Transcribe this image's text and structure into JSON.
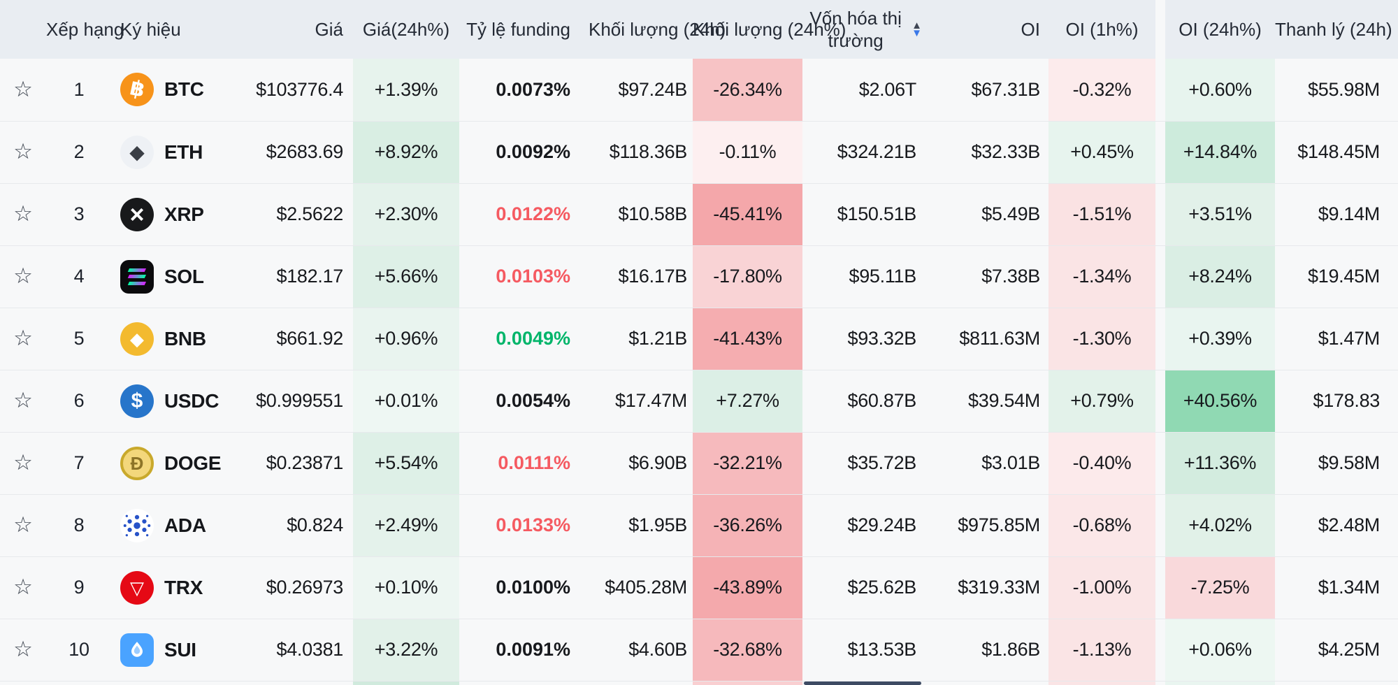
{
  "palette": {
    "header_bg": "#e9edf2",
    "row_bg": "#f7f8f9",
    "row_border": "#e7e9ec",
    "text_dark": "#17191d",
    "funding_red": "#f55a61",
    "funding_green": "#00b56a",
    "sort_arrow_inactive": "#3e4554",
    "sort_arrow_active": "#3a78e8",
    "scrollbar_thumb": "#3d4a63"
  },
  "sort": {
    "column": "mcap",
    "direction": "desc"
  },
  "icons": {
    "star_glyph": "☆",
    "sort_up_glyph": "▲",
    "sort_down_glyph": "▼"
  },
  "columns": {
    "star": "",
    "rank": "Xếp hạng",
    "symbol": "Ký hiệu",
    "price": "Giá",
    "price_chg": "Giá(24h%)",
    "funding": "Tỷ lệ funding",
    "volume": "Khối lượng (24h)",
    "volume_chg": "Khối lượng (24h%)",
    "mcap": "Vốn hóa thị trường",
    "oi": "OI",
    "oi_1h": "OI (1h%)",
    "oi_24h": "OI (24h%)",
    "liq": "Thanh lý (24h)"
  },
  "rows": [
    {
      "rank": "1",
      "symbol": "BTC",
      "icon": {
        "name": "btc-icon",
        "type": "circle",
        "bg": "#f7931a",
        "fg": "#ffffff",
        "glyph": "฿",
        "glyphSize": 30,
        "rotate": 12
      },
      "price": "$103776.4",
      "price_chg": {
        "text": "+1.39%",
        "bg": "#e7f3ed"
      },
      "funding": {
        "text": "0.0073%",
        "color": "dark"
      },
      "volume": "$97.24B",
      "volume_chg": {
        "text": "-26.34%",
        "bg": "#f7c3c5"
      },
      "mcap": "$2.06T",
      "oi": "$67.31B",
      "oi_1h": {
        "text": "-0.32%",
        "bg": "#fcebec"
      },
      "oi_24h": {
        "text": "+0.60%",
        "bg": "#e7f4ee"
      },
      "liq": "$55.98M"
    },
    {
      "rank": "2",
      "symbol": "ETH",
      "icon": {
        "name": "eth-icon",
        "type": "circle",
        "bg": "#eef1f5",
        "fg": "#3b3f46",
        "glyph": "◆",
        "glyphSize": 28
      },
      "price": "$2683.69",
      "price_chg": {
        "text": "+8.92%",
        "bg": "#d9eee3"
      },
      "funding": {
        "text": "0.0092%",
        "color": "dark"
      },
      "volume": "$118.36B",
      "volume_chg": {
        "text": "-0.11%",
        "bg": "#fdeff0"
      },
      "mcap": "$324.21B",
      "oi": "$32.33B",
      "oi_1h": {
        "text": "+0.45%",
        "bg": "#e7f4ee"
      },
      "oi_24h": {
        "text": "+14.84%",
        "bg": "#cdebdc"
      },
      "liq": "$148.45M"
    },
    {
      "rank": "3",
      "symbol": "XRP",
      "icon": {
        "name": "xrp-icon",
        "type": "circle",
        "bg": "#18191b",
        "fg": "#ffffff",
        "glyph": "×",
        "glyphSize": 36
      },
      "price": "$2.5622",
      "price_chg": {
        "text": "+2.30%",
        "bg": "#e4f2eb"
      },
      "funding": {
        "text": "0.0122%",
        "color": "red"
      },
      "volume": "$10.58B",
      "volume_chg": {
        "text": "-45.41%",
        "bg": "#f4a7aa"
      },
      "mcap": "$150.51B",
      "oi": "$5.49B",
      "oi_1h": {
        "text": "-1.51%",
        "bg": "#fae2e3"
      },
      "oi_24h": {
        "text": "+3.51%",
        "bg": "#e2f1e9"
      },
      "liq": "$9.14M"
    },
    {
      "rank": "4",
      "symbol": "SOL",
      "icon": {
        "name": "sol-icon",
        "type": "sol",
        "bg": "#0b0b0d",
        "bar_gradient_start": "#00ffa3",
        "bar_gradient_end": "#dc1fff"
      },
      "price": "$182.17",
      "price_chg": {
        "text": "+5.66%",
        "bg": "#def0e7"
      },
      "funding": {
        "text": "0.0103%",
        "color": "red"
      },
      "volume": "$16.17B",
      "volume_chg": {
        "text": "-17.80%",
        "bg": "#f9d3d5"
      },
      "mcap": "$95.11B",
      "oi": "$7.38B",
      "oi_1h": {
        "text": "-1.34%",
        "bg": "#fae4e5"
      },
      "oi_24h": {
        "text": "+8.24%",
        "bg": "#daeee4"
      },
      "liq": "$19.45M"
    },
    {
      "rank": "5",
      "symbol": "BNB",
      "icon": {
        "name": "bnb-icon",
        "type": "circle",
        "bg": "#f3ba2f",
        "fg": "#ffffff",
        "glyph": "◆",
        "glyphSize": 26
      },
      "price": "$661.92",
      "price_chg": {
        "text": "+0.96%",
        "bg": "#e9f4ef"
      },
      "funding": {
        "text": "0.0049%",
        "color": "green"
      },
      "volume": "$1.21B",
      "volume_chg": {
        "text": "-41.43%",
        "bg": "#f5adb0"
      },
      "mcap": "$93.32B",
      "oi": "$811.63M",
      "oi_1h": {
        "text": "-1.30%",
        "bg": "#fae4e5"
      },
      "oi_24h": {
        "text": "+0.39%",
        "bg": "#e9f5f0"
      },
      "liq": "$1.47M"
    },
    {
      "rank": "6",
      "symbol": "USDC",
      "icon": {
        "name": "usdc-icon",
        "type": "circle",
        "bg": "#2775ca",
        "fg": "#ffffff",
        "glyph": "$",
        "glyphSize": 30
      },
      "price": "$0.999551",
      "price_chg": {
        "text": "+0.01%",
        "bg": "#eef7f3"
      },
      "funding": {
        "text": "0.0054%",
        "color": "dark"
      },
      "volume": "$17.47M",
      "volume_chg": {
        "text": "+7.27%",
        "bg": "#dcefe6"
      },
      "mcap": "$60.87B",
      "oi": "$39.54M",
      "oi_1h": {
        "text": "+0.79%",
        "bg": "#e3f2ea"
      },
      "oi_24h": {
        "text": "+40.56%",
        "bg": "#90d9b3"
      },
      "liq": "$178.83"
    },
    {
      "rank": "7",
      "symbol": "DOGE",
      "icon": {
        "name": "doge-icon",
        "type": "circle",
        "bg": "#f3d77b",
        "fg": "#8d7427",
        "glyph": "Ð",
        "glyphSize": 26,
        "border": "#c9a92c"
      },
      "price": "$0.23871",
      "price_chg": {
        "text": "+5.54%",
        "bg": "#def0e7"
      },
      "funding": {
        "text": "0.0111%",
        "color": "red"
      },
      "volume": "$6.90B",
      "volume_chg": {
        "text": "-32.21%",
        "bg": "#f6babd"
      },
      "mcap": "$35.72B",
      "oi": "$3.01B",
      "oi_1h": {
        "text": "-0.40%",
        "bg": "#fceaeb"
      },
      "oi_24h": {
        "text": "+11.36%",
        "bg": "#d3ecdf"
      },
      "liq": "$9.58M"
    },
    {
      "rank": "8",
      "symbol": "ADA",
      "icon": {
        "name": "ada-icon",
        "type": "ada",
        "bg": "#ffffff",
        "fg": "#2752c8"
      },
      "price": "$0.824",
      "price_chg": {
        "text": "+2.49%",
        "bg": "#e4f2eb"
      },
      "funding": {
        "text": "0.0133%",
        "color": "red"
      },
      "volume": "$1.95B",
      "volume_chg": {
        "text": "-36.26%",
        "bg": "#f5b3b6"
      },
      "mcap": "$29.24B",
      "oi": "$975.85M",
      "oi_1h": {
        "text": "-0.68%",
        "bg": "#fbe7e8"
      },
      "oi_24h": {
        "text": "+4.02%",
        "bg": "#e1f1e8"
      },
      "liq": "$2.48M"
    },
    {
      "rank": "9",
      "symbol": "TRX",
      "icon": {
        "name": "trx-icon",
        "type": "circle",
        "bg": "#e50915",
        "fg": "#ffffff",
        "glyph": "▽",
        "glyphSize": 26
      },
      "price": "$0.26973",
      "price_chg": {
        "text": "+0.10%",
        "bg": "#edf6f2"
      },
      "funding": {
        "text": "0.0100%",
        "color": "dark"
      },
      "volume": "$405.28M",
      "volume_chg": {
        "text": "-43.89%",
        "bg": "#f4a9ac"
      },
      "mcap": "$25.62B",
      "oi": "$319.33M",
      "oi_1h": {
        "text": "-1.00%",
        "bg": "#fae5e6"
      },
      "oi_24h": {
        "text": "-7.25%",
        "bg": "#f9d9db"
      },
      "liq": "$1.34M"
    },
    {
      "rank": "10",
      "symbol": "SUI",
      "icon": {
        "name": "sui-icon",
        "type": "sui",
        "bg": "#4aa3ff",
        "fg": "#ffffff"
      },
      "price": "$4.0381",
      "price_chg": {
        "text": "+3.22%",
        "bg": "#e2f1e9"
      },
      "funding": {
        "text": "0.0091%",
        "color": "dark"
      },
      "volume": "$4.60B",
      "volume_chg": {
        "text": "-32.68%",
        "bg": "#f6b9bc"
      },
      "mcap": "$13.53B",
      "oi": "$1.86B",
      "oi_1h": {
        "text": "-1.13%",
        "bg": "#fae4e5"
      },
      "oi_24h": {
        "text": "+0.06%",
        "bg": "#edf7f2"
      },
      "liq": "$4.25M"
    }
  ],
  "partial_row": {
    "price_chg_bg": "#d0eadd",
    "volume_chg_bg": "#f9cfd1",
    "oi_1h_bg": "#fae4e5",
    "oi_24h_bg": "#e9f5f0"
  }
}
